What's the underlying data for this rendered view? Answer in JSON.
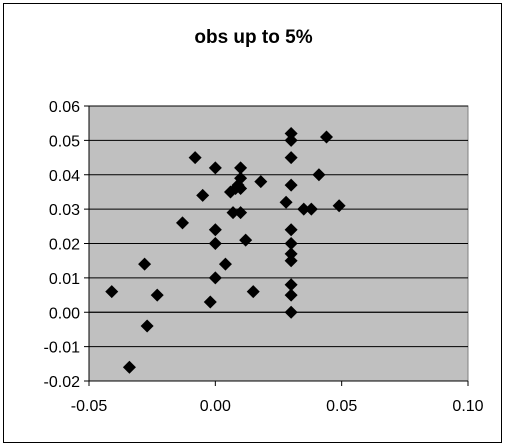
{
  "chart_data": {
    "type": "scatter",
    "title": "obs up to 5%",
    "xlabel": "",
    "ylabel": "",
    "xlim": [
      -0.05,
      0.1
    ],
    "ylim": [
      -0.02,
      0.06
    ],
    "x_ticks": [
      "-0.05",
      "0.00",
      "0.05",
      "0.10"
    ],
    "y_ticks": [
      "0.06",
      "0.05",
      "0.04",
      "0.03",
      "0.02",
      "0.01",
      "0.00",
      "-0.01",
      "-0.02"
    ],
    "grid": true,
    "legend": "none",
    "marker": "diamond",
    "colors": {
      "plot_bg": "#c0c0c0",
      "marker": "#000000",
      "grid": "#000000"
    },
    "points": [
      {
        "x": -0.041,
        "y": 0.006
      },
      {
        "x": -0.034,
        "y": -0.016
      },
      {
        "x": -0.028,
        "y": 0.014
      },
      {
        "x": -0.027,
        "y": -0.004
      },
      {
        "x": -0.023,
        "y": 0.005
      },
      {
        "x": -0.013,
        "y": 0.026
      },
      {
        "x": -0.008,
        "y": 0.045
      },
      {
        "x": -0.005,
        "y": 0.034
      },
      {
        "x": -0.002,
        "y": 0.003
      },
      {
        "x": 0.0,
        "y": 0.01
      },
      {
        "x": 0.0,
        "y": 0.02
      },
      {
        "x": 0.0,
        "y": 0.024
      },
      {
        "x": 0.0,
        "y": 0.042
      },
      {
        "x": 0.004,
        "y": 0.014
      },
      {
        "x": 0.006,
        "y": 0.035
      },
      {
        "x": 0.007,
        "y": 0.029
      },
      {
        "x": 0.008,
        "y": 0.036
      },
      {
        "x": 0.009,
        "y": 0.037
      },
      {
        "x": 0.01,
        "y": 0.029
      },
      {
        "x": 0.01,
        "y": 0.036
      },
      {
        "x": 0.01,
        "y": 0.039
      },
      {
        "x": 0.01,
        "y": 0.042
      },
      {
        "x": 0.012,
        "y": 0.021
      },
      {
        "x": 0.015,
        "y": 0.006
      },
      {
        "x": 0.018,
        "y": 0.038
      },
      {
        "x": 0.028,
        "y": 0.032
      },
      {
        "x": 0.03,
        "y": 0.0
      },
      {
        "x": 0.03,
        "y": 0.005
      },
      {
        "x": 0.03,
        "y": 0.008
      },
      {
        "x": 0.03,
        "y": 0.015
      },
      {
        "x": 0.03,
        "y": 0.017
      },
      {
        "x": 0.03,
        "y": 0.02
      },
      {
        "x": 0.03,
        "y": 0.024
      },
      {
        "x": 0.03,
        "y": 0.037
      },
      {
        "x": 0.03,
        "y": 0.045
      },
      {
        "x": 0.03,
        "y": 0.05
      },
      {
        "x": 0.03,
        "y": 0.052
      },
      {
        "x": 0.035,
        "y": 0.03
      },
      {
        "x": 0.038,
        "y": 0.03
      },
      {
        "x": 0.041,
        "y": 0.04
      },
      {
        "x": 0.044,
        "y": 0.051
      },
      {
        "x": 0.049,
        "y": 0.031
      }
    ]
  }
}
